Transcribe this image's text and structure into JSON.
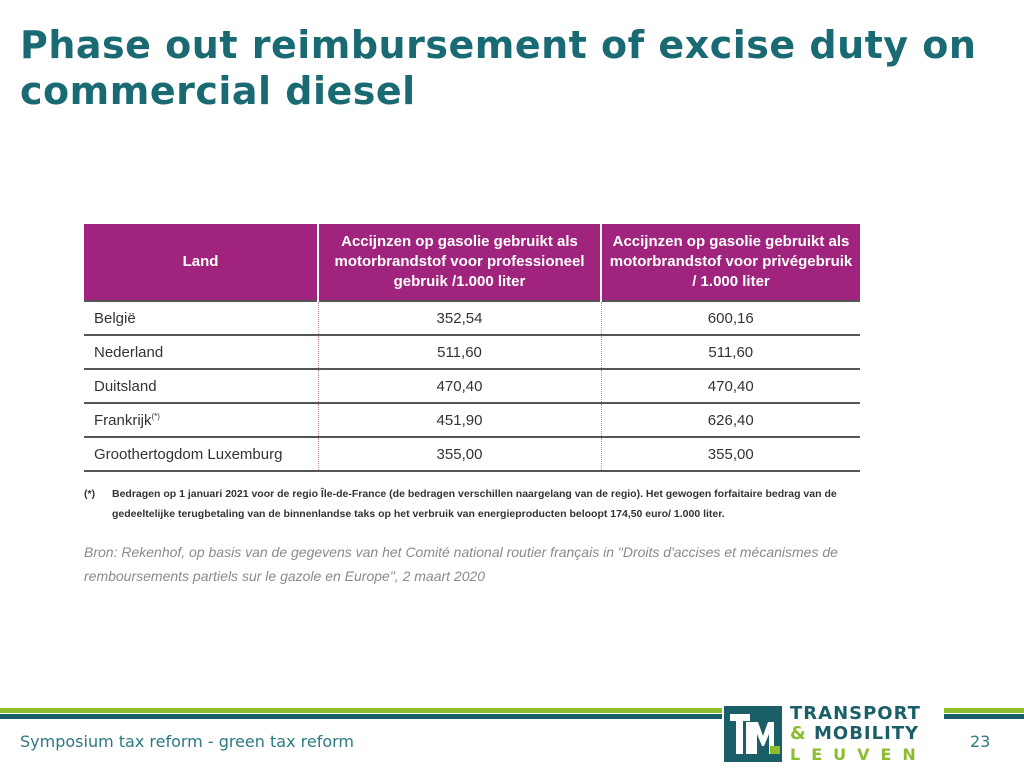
{
  "slide": {
    "title": "Phase out reimbursement of excise duty on commercial diesel",
    "footer": "Symposium tax reform - green tax reform",
    "page_number": "23"
  },
  "table": {
    "headers": [
      "Land",
      "Accijnzen op gasolie gebruikt als motorbrandstof voor professioneel gebruik /1.000 liter",
      "Accijnzen op gasolie gebruikt als motorbrandstof voor privégebruik / 1.000 liter"
    ],
    "rows": [
      {
        "land": "België",
        "note": "",
        "professioneel": "352,54",
        "prive": "600,16"
      },
      {
        "land": "Nederland",
        "note": "",
        "professioneel": "511,60",
        "prive": "511,60"
      },
      {
        "land": "Duitsland",
        "note": "",
        "professioneel": "470,40",
        "prive": "470,40"
      },
      {
        "land": "Frankrijk",
        "note": "(*)",
        "professioneel": "451,90",
        "prive": "626,40"
      },
      {
        "land": "Groothertogdom Luxemburg",
        "note": "",
        "professioneel": "355,00",
        "prive": "355,00"
      }
    ]
  },
  "footnote": {
    "mark": "(*)",
    "text": "Bedragen op 1 januari 2021 voor de regio Île-de-France (de bedragen verschillen naargelang van de regio). Het gewogen forfaitaire bedrag van de gedeeltelijke terugbetaling van de binnenlandse taks op het verbruik van energieproducten beloopt 174,50 euro/ 1.000 liter."
  },
  "source": "Bron: Rekenhof, op basis van de gegevens van het Comité national routier français in \"Droits d'accises et mécanismes de remboursements partiels sur le gazole en Europe\", 2 maart 2020",
  "logo": {
    "mark_text": "TML",
    "line1": "TRANSPORT",
    "line2_amp": "&",
    "line2": "MOBILITY",
    "line3": "LEUVEN"
  },
  "colors": {
    "title": "#1a6a73",
    "header_bg": "#a0237d",
    "brand_green": "#8cbd2c",
    "brand_teal": "#1a5f68"
  }
}
